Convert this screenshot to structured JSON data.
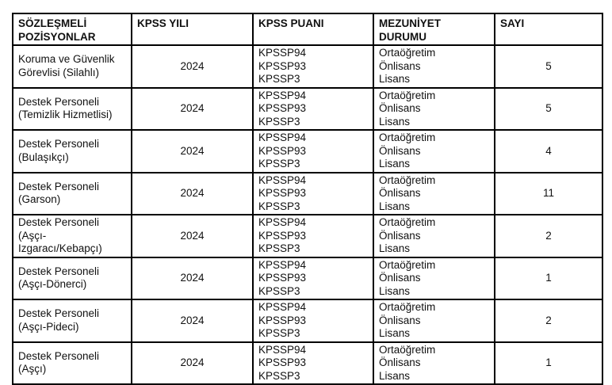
{
  "colors": {
    "border": "#000000",
    "text": "#111111",
    "background": "#ffffff"
  },
  "table": {
    "columns": [
      "SÖZLEŞMELİ\nPOZİSYONLAR",
      "KPSS YILI",
      "KPSS PUANI",
      "MEZUNİYET\nDURUMU",
      "SAYI"
    ],
    "rows": [
      {
        "position": "Koruma ve Güvenlik\nGörevlisi (Silahlı)",
        "kpss_year": "2024",
        "kpss_scores": "KPSSP94\nKPSSP93\nKPSSP3",
        "graduation": "Ortaöğretim\nÖnlisans\nLisans",
        "count": "5"
      },
      {
        "position": "Destek Personeli\n(Temizlik Hizmetlisi)",
        "kpss_year": "2024",
        "kpss_scores": "KPSSP94\nKPSSP93\nKPSSP3",
        "graduation": "Ortaöğretim\nÖnlisans\nLisans",
        "count": "5"
      },
      {
        "position": "Destek Personeli\n(Bulaşıkçı)",
        "kpss_year": "2024",
        "kpss_scores": "KPSSP94\nKPSSP93\nKPSSP3",
        "graduation": "Ortaöğretim\nÖnlisans\nLisans",
        "count": "4"
      },
      {
        "position": "Destek Personeli\n(Garson)",
        "kpss_year": "2024",
        "kpss_scores": "KPSSP94\nKPSSP93\nKPSSP3",
        "graduation": "Ortaöğretim\nÖnlisans\nLisans",
        "count": "11"
      },
      {
        "position": "Destek Personeli\n(Aşçı-\nIzgaracı/Kebapçı)",
        "kpss_year": "2024",
        "kpss_scores": "KPSSP94\nKPSSP93\nKPSSP3",
        "graduation": "Ortaöğretim\nÖnlisans\nLisans",
        "count": "2"
      },
      {
        "position": "Destek Personeli\n(Aşçı-Dönerci)",
        "kpss_year": "2024",
        "kpss_scores": "KPSSP94\nKPSSP93\nKPSSP3",
        "graduation": "Ortaöğretim\nÖnlisans\nLisans",
        "count": "1"
      },
      {
        "position": "Destek Personeli\n(Aşçı-Pideci)",
        "kpss_year": "2024",
        "kpss_scores": "KPSSP94\nKPSSP93\nKPSSP3",
        "graduation": "Ortaöğretim\nÖnlisans\nLisans",
        "count": "2"
      },
      {
        "position": "Destek Personeli\n(Aşçı)",
        "kpss_year": "2024",
        "kpss_scores": "KPSSP94\nKPSSP93\nKPSSP3",
        "graduation": "Ortaöğretim\nÖnlisans\nLisans",
        "count": "1"
      }
    ]
  }
}
